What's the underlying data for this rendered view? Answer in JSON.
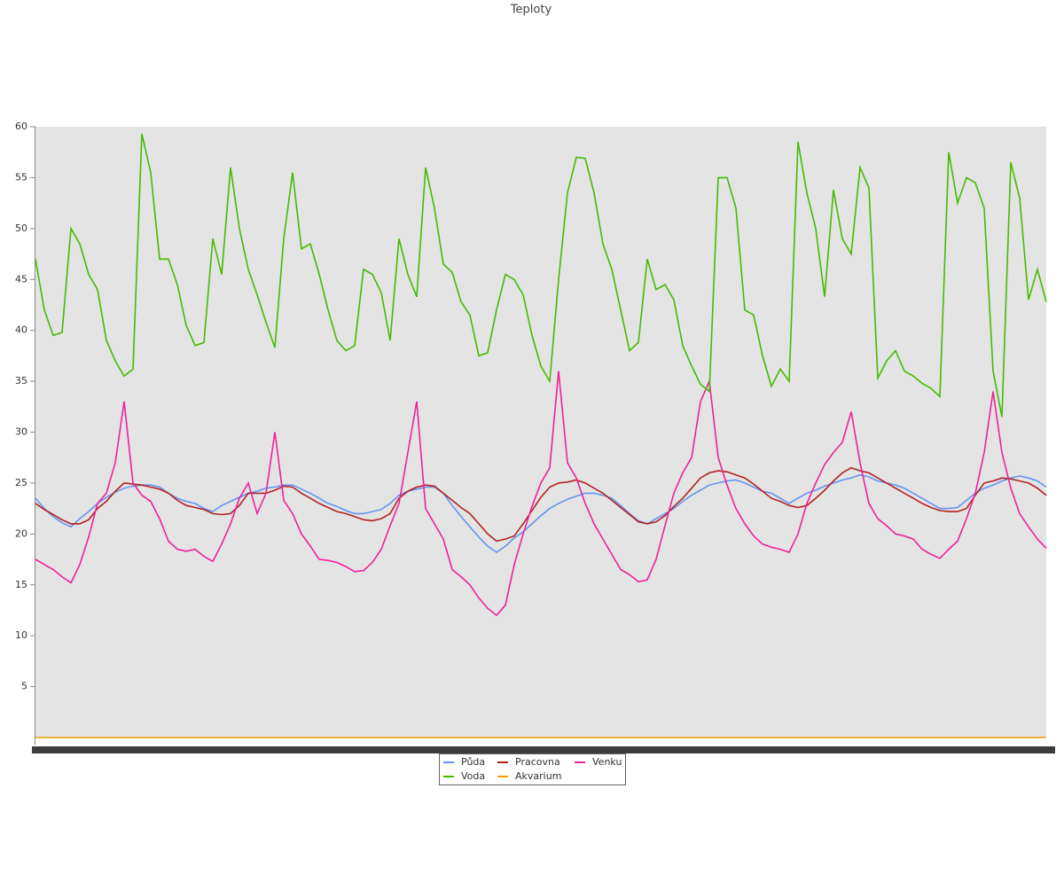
{
  "chart_data": {
    "type": "line",
    "title": "Teploty",
    "categories": [
      null,
      null,
      null,
      null,
      null,
      null,
      null,
      null,
      null,
      null,
      null,
      null,
      null,
      null,
      null,
      null,
      null,
      null,
      null,
      null,
      null,
      null,
      null,
      null,
      null,
      null,
      null,
      null,
      null,
      null,
      null,
      null,
      null,
      null,
      null,
      null,
      null,
      null,
      null,
      null,
      null,
      null,
      null,
      null,
      null,
      null,
      null,
      null,
      null,
      null,
      null,
      null,
      null,
      null,
      null,
      null,
      null,
      null,
      null,
      null,
      null,
      null,
      null,
      null,
      null,
      null,
      null,
      null,
      null,
      null,
      null,
      null,
      null,
      null,
      null,
      null,
      null,
      null,
      null,
      null,
      null,
      null,
      null,
      null,
      null,
      null,
      null,
      null,
      null,
      null,
      null,
      null,
      null,
      null,
      null,
      null,
      null,
      null,
      null,
      null,
      null,
      null,
      null,
      null,
      null,
      null,
      null,
      null,
      null,
      null,
      null,
      null,
      null,
      null,
      null
    ],
    "ylim": [
      0,
      60
    ],
    "yticks": [
      5,
      10,
      15,
      20,
      25,
      30,
      35,
      40,
      45,
      50,
      55,
      60
    ],
    "legend": "bottom",
    "series": [
      {
        "name": "Půda",
        "color": "#6495ed",
        "values": [
          23.5,
          22.5,
          21.7,
          21.1,
          20.7,
          21.5,
          22.2,
          23,
          23.6,
          24.1,
          24.5,
          24.7,
          24.8,
          24.8,
          24.6,
          24,
          23.5,
          23.2,
          23,
          22.5,
          22.2,
          22.8,
          23.2,
          23.6,
          24,
          24.2,
          24.5,
          24.6,
          24.8,
          24.8,
          24.4,
          24,
          23.5,
          23,
          22.7,
          22.3,
          22,
          22,
          22.2,
          22.4,
          23,
          23.8,
          24.2,
          24.4,
          24.6,
          24.6,
          24,
          22.8,
          21.7,
          20.7,
          19.7,
          18.8,
          18.2,
          18.8,
          19.6,
          20.2,
          21,
          21.8,
          22.5,
          23,
          23.4,
          23.7,
          24,
          24,
          23.8,
          23.5,
          22.8,
          22,
          21.3,
          21,
          21.5,
          22,
          22.5,
          23.2,
          23.8,
          24.3,
          24.8,
          25,
          25.2,
          25.3,
          25,
          24.6,
          24.2,
          24,
          23.5,
          23,
          23.5,
          24,
          24.3,
          24.7,
          25,
          25.3,
          25.5,
          25.8,
          25.6,
          25.2,
          25,
          24.8,
          24.5,
          24,
          23.5,
          23,
          22.5,
          22.5,
          22.6,
          23.3,
          24,
          24.5,
          24.8,
          25.2,
          25.5,
          25.7,
          25.5,
          25.2,
          24.6
        ]
      },
      {
        "name": "Pracovna",
        "color": "#b22222",
        "values": [
          23,
          22.4,
          21.9,
          21.4,
          21,
          21,
          21.4,
          22.5,
          23.2,
          24.2,
          25,
          24.9,
          24.8,
          24.6,
          24.4,
          24,
          23.3,
          22.8,
          22.6,
          22.4,
          22,
          21.9,
          22,
          22.8,
          24,
          24,
          24,
          24.3,
          24.7,
          24.6,
          24,
          23.5,
          23,
          22.6,
          22.2,
          22,
          21.7,
          21.4,
          21.3,
          21.5,
          22,
          23.5,
          24.2,
          24.6,
          24.8,
          24.7,
          24,
          23.3,
          22.6,
          22,
          21,
          20,
          19.3,
          19.5,
          19.8,
          21,
          22.3,
          23.6,
          24.6,
          25,
          25.1,
          25.3,
          25,
          24.5,
          24,
          23.3,
          22.6,
          21.9,
          21.2,
          21,
          21.2,
          21.8,
          22.7,
          23.5,
          24.5,
          25.5,
          26,
          26.2,
          26.1,
          25.8,
          25.5,
          24.9,
          24.2,
          23.5,
          23.2,
          22.8,
          22.6,
          22.8,
          23.5,
          24.3,
          25.2,
          26,
          26.5,
          26.2,
          26,
          25.5,
          25,
          24.5,
          24,
          23.5,
          23,
          22.6,
          22.3,
          22.2,
          22.2,
          22.5,
          23.8,
          25,
          25.2,
          25.5,
          25.4,
          25.2,
          25,
          24.5,
          23.8
        ]
      },
      {
        "name": "Venku",
        "color": "#f0209a",
        "values": [
          17.5,
          17,
          16.5,
          15.8,
          15.2,
          17,
          19.7,
          23,
          24,
          27,
          33,
          25,
          23.8,
          23.2,
          21.5,
          19.3,
          18.5,
          18.3,
          18.5,
          17.8,
          17.3,
          19,
          21,
          23.5,
          25,
          22,
          24,
          30,
          23.3,
          22,
          20,
          18.8,
          17.5,
          17.4,
          17.2,
          16.8,
          16.3,
          16.4,
          17.2,
          18.5,
          20.8,
          23,
          28,
          33,
          22.5,
          21,
          19.5,
          16.5,
          15.8,
          15,
          13.7,
          12.7,
          12,
          13,
          17,
          20,
          22.7,
          25,
          26.5,
          36,
          27,
          25.5,
          23,
          21,
          19.5,
          18,
          16.5,
          16,
          15.3,
          15.5,
          17.5,
          20.8,
          24,
          26,
          27.5,
          33,
          35,
          27.5,
          24.8,
          22.5,
          21,
          19.8,
          19,
          18.7,
          18.5,
          18.2,
          20,
          23,
          25,
          26.8,
          28,
          29,
          32,
          27,
          23,
          21.5,
          20.8,
          20,
          19.8,
          19.5,
          18.5,
          18,
          17.6,
          18.5,
          19.3,
          21.5,
          24,
          28,
          34,
          28,
          24.5,
          22,
          20.7,
          19.5,
          18.6
        ]
      },
      {
        "name": "Voda",
        "color": "#44bb00",
        "values": [
          47,
          42,
          39.5,
          39.8,
          50,
          48.5,
          45.5,
          44,
          39,
          37,
          35.5,
          36.2,
          59.3,
          55.5,
          47,
          47,
          44.5,
          40.5,
          38.5,
          38.8,
          49,
          45.5,
          56,
          50,
          46,
          43.5,
          40.8,
          38.3,
          49,
          55.5,
          48,
          48.5,
          45.5,
          42,
          39,
          38,
          38.5,
          46,
          45.5,
          43.7,
          39,
          49,
          45.5,
          43.3,
          56,
          52,
          46.5,
          45.7,
          42.8,
          41.5,
          37.5,
          37.8,
          42,
          45.5,
          45,
          43.5,
          39.5,
          36.5,
          35,
          45,
          53.5,
          57,
          56.9,
          53.5,
          48.5,
          46,
          42,
          38,
          38.8,
          47,
          44,
          44.5,
          43,
          38.5,
          36.5,
          34.7,
          34,
          55,
          55,
          52,
          42,
          41.5,
          37.5,
          34.5,
          36.2,
          35,
          58.5,
          53.5,
          50,
          43.3,
          53.8,
          49,
          47.5,
          56,
          54,
          35.3,
          37,
          38,
          36,
          35.5,
          34.8,
          34.3,
          33.5,
          57.5,
          52.5,
          55,
          54.5,
          52,
          36,
          31.5,
          56.5,
          53,
          43,
          46,
          42.8
        ]
      },
      {
        "name": "Akvarium",
        "color": "#f0a000",
        "values": [
          0,
          0,
          0,
          0,
          0,
          0,
          0,
          0,
          0,
          0,
          0,
          0,
          0,
          0,
          0,
          0,
          0,
          0,
          0,
          0,
          0,
          0,
          0,
          0,
          0,
          0,
          0,
          0,
          0,
          0,
          0,
          0,
          0,
          0,
          0,
          0,
          0,
          0,
          0,
          0,
          0,
          0,
          0,
          0,
          0,
          0,
          0,
          0,
          0,
          0,
          0,
          0,
          0,
          0,
          0,
          0,
          0,
          0,
          0,
          0,
          0,
          0,
          0,
          0,
          0,
          0,
          0,
          0,
          0,
          0,
          0,
          0,
          0,
          0,
          0,
          0,
          0,
          0,
          0,
          0,
          0,
          0,
          0,
          0,
          0,
          0,
          0,
          0,
          0,
          0,
          0,
          0,
          0,
          0,
          0,
          0,
          0,
          0,
          0,
          0,
          0,
          0,
          0,
          0,
          0,
          0,
          0,
          0,
          0,
          0,
          0,
          0,
          0,
          0,
          0
        ]
      }
    ]
  }
}
